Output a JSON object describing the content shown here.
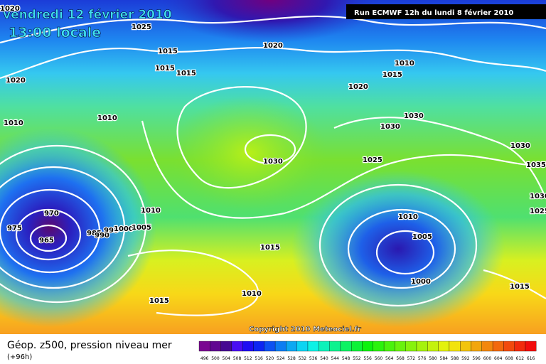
{
  "header": {
    "date": "vendredi 12 février 2010",
    "time": "13:00 locale",
    "run": "Run ECMWF 12h du lundi 8 février 2010"
  },
  "isobar_labels": [
    "1020",
    "1025",
    "1020",
    "1015",
    "1015",
    "1015",
    "1010",
    "1015",
    "1020",
    "1020",
    "1010",
    "1030",
    "1030",
    "1010",
    "1030",
    "1030",
    "1025",
    "1035",
    "1030",
    "1025",
    "970",
    "1010",
    "1010",
    "975",
    "985",
    "990",
    "995",
    "1000",
    "1005",
    "1005",
    "965",
    "1015",
    "1000",
    "1015",
    "1010",
    "1015"
  ],
  "copyright": "Copyright 2010 Meteociel.fr",
  "legend": {
    "title": "Géop. z500, pression niveau mer",
    "lead": "(+96h)",
    "scale": [
      496,
      500,
      504,
      508,
      512,
      516,
      520,
      524,
      528,
      532,
      536,
      540,
      544,
      548,
      552,
      556,
      560,
      564,
      568,
      572,
      576,
      580,
      584,
      588,
      592,
      596,
      600,
      604,
      608,
      612,
      616
    ]
  }
}
